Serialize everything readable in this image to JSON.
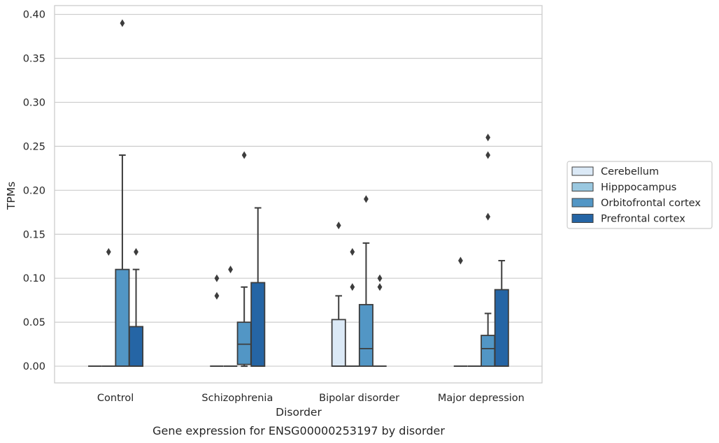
{
  "chart_data": {
    "type": "box",
    "title": "",
    "caption": "Gene expression for ENSG00000253197 by disorder",
    "xlabel": "Disorder",
    "ylabel": "TPMs",
    "ylim": [
      -0.019,
      0.41
    ],
    "yticks": [
      0.0,
      0.05,
      0.1,
      0.15,
      0.2,
      0.25,
      0.3,
      0.35,
      0.4
    ],
    "ytick_labels": [
      "0.00",
      "0.05",
      "0.10",
      "0.15",
      "0.20",
      "0.25",
      "0.30",
      "0.35",
      "0.40"
    ],
    "categories": [
      "Control",
      "Schizophrenia",
      "Bipolar disorder",
      "Major depression"
    ],
    "grid": "horizontal",
    "legend_position": "right",
    "series": [
      {
        "name": "Cerebellum",
        "color": "#dbe9f6",
        "boxes": [
          {
            "q1": 0,
            "median": 0,
            "q3": 0,
            "whislo": 0,
            "whishi": 0,
            "fliers": []
          },
          {
            "q1": 0,
            "median": 0,
            "q3": 0,
            "whislo": 0,
            "whishi": 0,
            "fliers": [
              0.08,
              0.1
            ]
          },
          {
            "q1": 0,
            "median": 0,
            "q3": 0.053,
            "whislo": 0,
            "whishi": 0.08,
            "fliers": [
              0.16
            ]
          },
          {
            "q1": 0,
            "median": 0,
            "q3": 0,
            "whislo": 0,
            "whishi": 0,
            "fliers": [
              0.12
            ]
          }
        ]
      },
      {
        "name": "Hipppocampus",
        "color": "#9ac8e0",
        "boxes": [
          {
            "q1": 0,
            "median": 0,
            "q3": 0,
            "whislo": 0,
            "whishi": 0,
            "fliers": [
              0.13
            ]
          },
          {
            "q1": 0,
            "median": 0,
            "q3": 0,
            "whislo": 0,
            "whishi": 0,
            "fliers": [
              0.11
            ]
          },
          {
            "q1": 0,
            "median": 0,
            "q3": 0,
            "whislo": 0,
            "whishi": 0,
            "fliers": [
              0.09,
              0.13
            ]
          },
          {
            "q1": 0,
            "median": 0,
            "q3": 0,
            "whislo": 0,
            "whishi": 0,
            "fliers": []
          }
        ]
      },
      {
        "name": "Orbitofrontal cortex",
        "color": "#5296c5",
        "boxes": [
          {
            "q1": 0,
            "median": 0,
            "q3": 0.11,
            "whislo": 0,
            "whishi": 0.24,
            "fliers": [
              0.39
            ]
          },
          {
            "q1": 0.002,
            "median": 0.025,
            "q3": 0.05,
            "whislo": 0,
            "whishi": 0.09,
            "fliers": [
              0.24
            ]
          },
          {
            "q1": 0,
            "median": 0.02,
            "q3": 0.07,
            "whislo": 0,
            "whishi": 0.14,
            "fliers": [
              0.19
            ]
          },
          {
            "q1": 0,
            "median": 0.02,
            "q3": 0.035,
            "whislo": 0,
            "whishi": 0.06,
            "fliers": [
              0.17,
              0.24,
              0.26
            ]
          }
        ]
      },
      {
        "name": "Prefrontal cortex",
        "color": "#2565a5",
        "boxes": [
          {
            "q1": 0,
            "median": 0,
            "q3": 0.045,
            "whislo": 0,
            "whishi": 0.11,
            "fliers": [
              0.13
            ]
          },
          {
            "q1": 0,
            "median": 0,
            "q3": 0.095,
            "whislo": 0,
            "whishi": 0.18,
            "fliers": []
          },
          {
            "q1": 0,
            "median": 0,
            "q3": 0,
            "whislo": 0,
            "whishi": 0,
            "fliers": [
              0.09,
              0.1
            ]
          },
          {
            "q1": 0,
            "median": 0,
            "q3": 0.087,
            "whislo": 0,
            "whishi": 0.12,
            "fliers": []
          }
        ]
      }
    ]
  }
}
